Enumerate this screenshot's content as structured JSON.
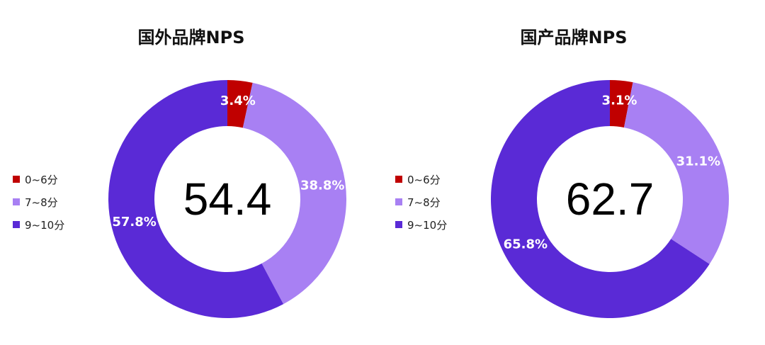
{
  "colors": {
    "low": "#c00000",
    "mid": "#a880f3",
    "high": "#5a2ad6"
  },
  "chart_data": [
    {
      "type": "pie",
      "title": "国外品牌NPS",
      "center_value": "54.4",
      "legend": [
        "0~6分",
        "7~8分",
        "9~10分"
      ],
      "legend_placement": "left",
      "slices": [
        {
          "name": "0~6分",
          "value": 3.4,
          "label": "3.4%",
          "color": "#c00000"
        },
        {
          "name": "7~8分",
          "value": 38.8,
          "label": "38.8%",
          "color": "#a880f3"
        },
        {
          "name": "9~10分",
          "value": 57.8,
          "label": "57.8%",
          "color": "#5a2ad6"
        }
      ]
    },
    {
      "type": "pie",
      "title": "国产品牌NPS",
      "center_value": "62.7",
      "legend": [
        "0~6分",
        "7~8分",
        "9~10分"
      ],
      "legend_placement": "left",
      "slices": [
        {
          "name": "0~6分",
          "value": 3.1,
          "label": "3.1%",
          "color": "#c00000"
        },
        {
          "name": "7~8分",
          "value": 31.1,
          "label": "31.1%",
          "color": "#a880f3"
        },
        {
          "name": "9~10分",
          "value": 65.8,
          "label": "65.8%",
          "color": "#5a2ad6"
        }
      ]
    }
  ]
}
